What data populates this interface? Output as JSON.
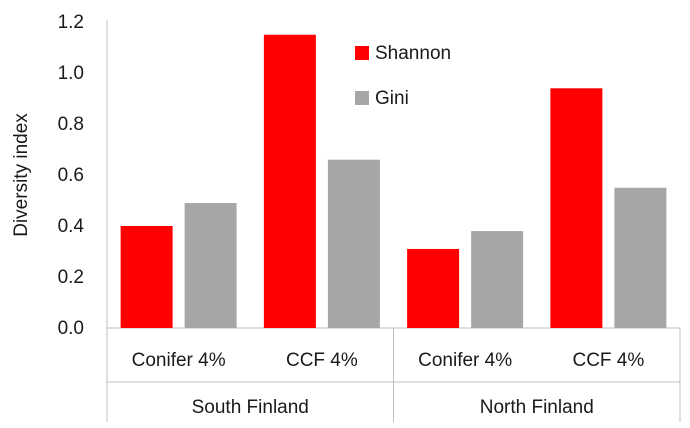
{
  "chart_data": {
    "type": "bar",
    "ylabel": "Diversity index",
    "ylim": [
      0,
      1.2
    ],
    "yticks": [
      "0.0",
      "0.2",
      "0.4",
      "0.6",
      "0.8",
      "1.0",
      "1.2"
    ],
    "groups": [
      {
        "name": "South Finland",
        "categories": [
          "Conifer 4%",
          "CCF 4%"
        ]
      },
      {
        "name": "North Finland",
        "categories": [
          "Conifer 4%",
          "CCF 4%"
        ]
      }
    ],
    "series": [
      {
        "name": "Shannon",
        "color": "#ff0000",
        "values": [
          0.4,
          1.15,
          0.31,
          0.94
        ]
      },
      {
        "name": "Gini",
        "color": "#a6a6a6",
        "values": [
          0.49,
          0.66,
          0.38,
          0.55
        ]
      }
    ],
    "legend": "top-center",
    "grid": false
  }
}
